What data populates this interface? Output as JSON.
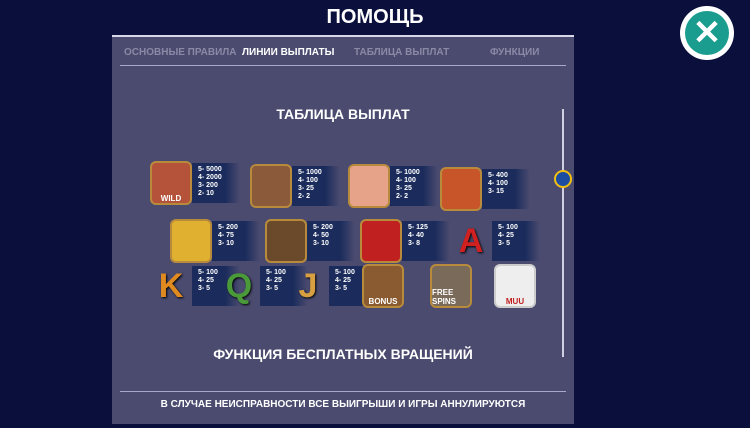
{
  "title": "ПОМОЩЬ",
  "tabs": [
    {
      "label": "ОСНОВНЫЕ ПРАВИЛА"
    },
    {
      "label": "ЛИНИИ ВЫПЛАТЫ",
      "active": true
    },
    {
      "label": "ТАБЛИЦА ВЫПЛАТ"
    },
    {
      "label": "ФУНКЦИИ"
    }
  ],
  "section_title": "ТАБЛИЦА ВЫПЛАТ",
  "next_section_title": "ФУНКЦИЯ БЕСПЛАТНЫХ ВРАЩЕНИЙ",
  "footer": "В СЛУЧАЕ НЕИСПРАВНОСТИ ВСЕ ВЫИГРЫШИ И ИГРЫ АННУЛИРУЮТСЯ",
  "scroll_position": 0.28,
  "symbols": [
    {
      "name": "farmer-girl",
      "label": "WILD",
      "pays": [
        "5- 5000",
        "4- 2000",
        "3- 200",
        "2- 10"
      ]
    },
    {
      "name": "dog",
      "pays": [
        "5- 1000",
        "4- 100",
        "3- 25",
        "2- 2"
      ]
    },
    {
      "name": "pig",
      "pays": [
        "5- 1000",
        "4- 100",
        "3- 25",
        "2- 2"
      ]
    },
    {
      "name": "tractor",
      "pays": [
        "5- 400",
        "4- 100",
        "3- 15"
      ]
    },
    {
      "name": "corn",
      "pays": [
        "5- 200",
        "4- 75",
        "3- 10"
      ]
    },
    {
      "name": "rooster",
      "pays": [
        "5- 200",
        "4- 50",
        "3- 10"
      ]
    },
    {
      "name": "apples",
      "pays": [
        "5- 125",
        "4- 40",
        "3- 8"
      ]
    },
    {
      "name": "A",
      "label": "A",
      "pays": [
        "5- 100",
        "4- 25",
        "3- 5"
      ]
    },
    {
      "name": "K",
      "label": "K",
      "pays": [
        "5- 100",
        "4- 25",
        "3- 5"
      ]
    },
    {
      "name": "Q",
      "label": "Q",
      "pays": [
        "5- 100",
        "4- 25",
        "3- 5"
      ]
    },
    {
      "name": "J",
      "label": "J",
      "pays": [
        "5- 100",
        "4- 25",
        "3- 5"
      ]
    },
    {
      "name": "hen-bonus",
      "label": "BONUS"
    },
    {
      "name": "bull-free-spins",
      "label": "FREE SPINS"
    },
    {
      "name": "milk",
      "label": "MUU"
    }
  ]
}
